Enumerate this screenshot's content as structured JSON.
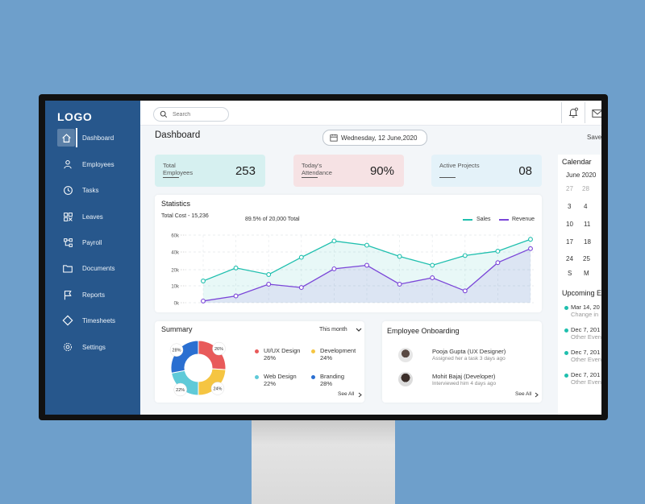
{
  "sidebar": {
    "logo": "LOGO",
    "items": [
      {
        "label": "Dashboard",
        "icon": "home-icon",
        "active": true
      },
      {
        "label": "Employees",
        "icon": "user-icon"
      },
      {
        "label": "Tasks",
        "icon": "clock-icon"
      },
      {
        "label": "Leaves",
        "icon": "leaves-icon"
      },
      {
        "label": "Payroll",
        "icon": "payroll-icon"
      },
      {
        "label": "Documents",
        "icon": "folder-icon"
      },
      {
        "label": "Reports",
        "icon": "flag-icon"
      },
      {
        "label": "Timesheets",
        "icon": "diamond-icon"
      },
      {
        "label": "Settings",
        "icon": "gear-icon"
      }
    ]
  },
  "topbar": {
    "search_placeholder": "Search"
  },
  "header": {
    "title": "Dashboard",
    "date": "Wednesday, 12 June,2020",
    "save_label": "Save"
  },
  "cards": [
    {
      "label": "Total Employees",
      "value": "253",
      "color": "#d6f0f0"
    },
    {
      "label": "Today's Attendance",
      "value": "90%",
      "color": "#f6e2e4"
    },
    {
      "label": "Active Projects",
      "value": "08",
      "color": "#e4f2f9"
    }
  ],
  "statistics": {
    "title": "Statistics",
    "total_cost": "Total Cost - 15,236",
    "progress_text": "89.5% of 20,000 Total",
    "legend_sales": "Sales",
    "legend_revenue": "Revenue"
  },
  "chart_data": {
    "type": "line",
    "title": "Statistics",
    "yticks": [
      "0k",
      "10k",
      "20k",
      "40k",
      "60k"
    ],
    "ylim": [
      0,
      60
    ],
    "x": [
      1,
      2,
      3,
      4,
      5,
      6,
      7,
      8,
      9,
      10,
      11
    ],
    "series": [
      {
        "name": "Sales",
        "color": "#1fbfae",
        "values": [
          13,
          22,
          17,
          34,
          53,
          48,
          35,
          25,
          36,
          41,
          55
        ]
      },
      {
        "name": "Revenue",
        "color": "#7a45d8",
        "values": [
          1,
          4,
          11,
          9,
          21,
          25,
          11,
          15,
          7,
          28,
          44
        ]
      }
    ]
  },
  "summary": {
    "title": "Summary",
    "period": "This month",
    "see_all": "See All",
    "segments": [
      {
        "label": "UI/UX Design",
        "percent": "26%",
        "value": 26,
        "color": "#e85a5a"
      },
      {
        "label": "Development",
        "percent": "24%",
        "value": 24,
        "color": "#f5c542"
      },
      {
        "label": "Web Design",
        "percent": "22%",
        "value": 22,
        "color": "#5fcad8"
      },
      {
        "label": "Branding",
        "percent": "28%",
        "value": 28,
        "color": "#2a6fd1"
      }
    ]
  },
  "onboarding": {
    "title": "Employee Onboarding",
    "see_all": "See All",
    "rows": [
      {
        "name": "Pooja Gupta (UX Designer)",
        "detail": "Assigned her a task 3 days ago"
      },
      {
        "name": "Mohit Bajaj (Developer)",
        "detail": "Interviewed him 4 days ago"
      }
    ]
  },
  "calendar": {
    "title": "Calendar",
    "month": "June 2020",
    "rows": [
      [
        "27",
        "28"
      ],
      [
        "3",
        "4"
      ],
      [
        "10",
        "11"
      ],
      [
        "17",
        "18"
      ],
      [
        "24",
        "25"
      ]
    ],
    "weekdays": [
      "S",
      "M"
    ]
  },
  "events": {
    "title": "Upcoming Ev",
    "items": [
      {
        "date": "Mar 14, 20",
        "detail": "Change in",
        "color": "#1fbfae"
      },
      {
        "date": "Dec 7, 201",
        "detail": "Other Even",
        "color": "#1fbfae"
      },
      {
        "date": "Dec 7, 201",
        "detail": "Other Even",
        "color": "#1fbfae"
      },
      {
        "date": "Dec 7, 201",
        "detail": "Other Even",
        "color": "#1fbfae"
      }
    ]
  }
}
